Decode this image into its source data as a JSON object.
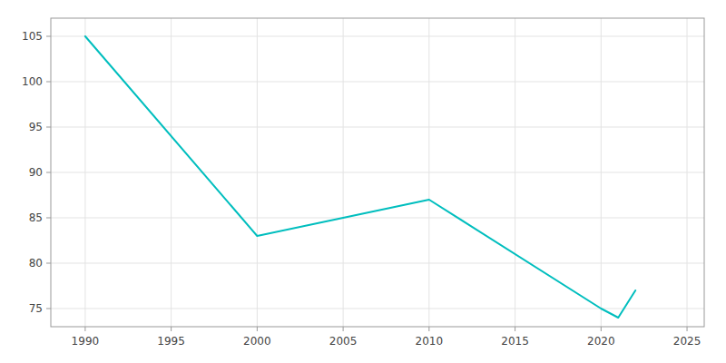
{
  "chart_data": {
    "type": "line",
    "x": [
      1990,
      2000,
      2005,
      2010,
      2020,
      2021,
      2022
    ],
    "values": [
      105,
      83,
      85,
      87,
      75,
      74,
      77
    ],
    "color": "#00BEBE",
    "xlim": [
      1988,
      2026
    ],
    "ylim": [
      73,
      107
    ],
    "xticks": [
      1990,
      1995,
      2000,
      2005,
      2010,
      2015,
      2020,
      2025
    ],
    "yticks": [
      75,
      80,
      85,
      90,
      95,
      100,
      105
    ],
    "grid": true
  }
}
